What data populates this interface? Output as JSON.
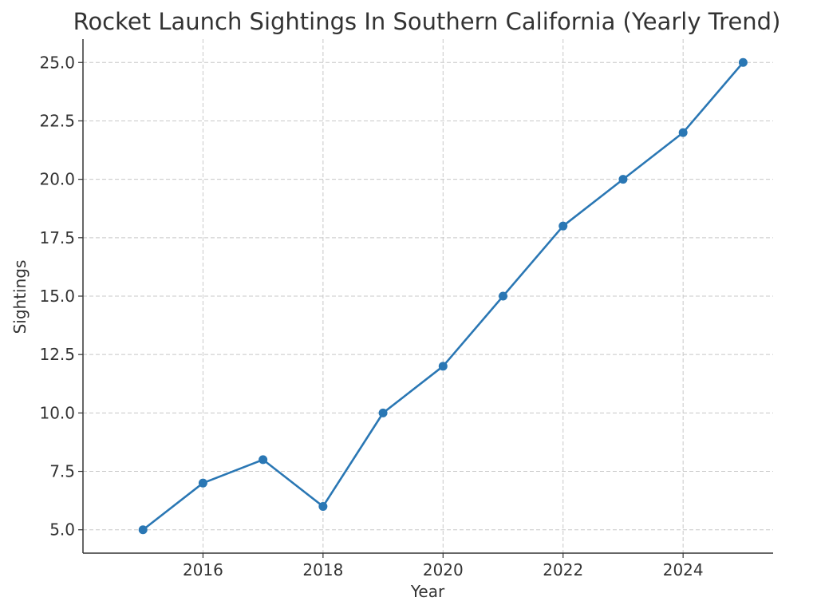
{
  "chart_data": {
    "type": "line",
    "title": "Rocket Launch Sightings In Southern California (Yearly Trend)",
    "xlabel": "Year",
    "ylabel": "Sightings",
    "x": [
      2015,
      2016,
      2017,
      2018,
      2019,
      2020,
      2021,
      2022,
      2023,
      2024,
      2025
    ],
    "series": [
      {
        "values": [
          5,
          7,
          8,
          6,
          10,
          12,
          15,
          18,
          20,
          22,
          25
        ],
        "color": "#2a77b4",
        "marker": "circle"
      }
    ],
    "x_ticks": [
      "2016",
      "2018",
      "2020",
      "2022",
      "2024"
    ],
    "y_ticks": [
      "5.0",
      "7.5",
      "10.0",
      "12.5",
      "15.0",
      "17.5",
      "20.0",
      "22.5",
      "25.0"
    ],
    "xlim": [
      2014,
      2025.5
    ],
    "ylim": [
      4,
      26
    ],
    "grid": true,
    "legend": "none"
  }
}
